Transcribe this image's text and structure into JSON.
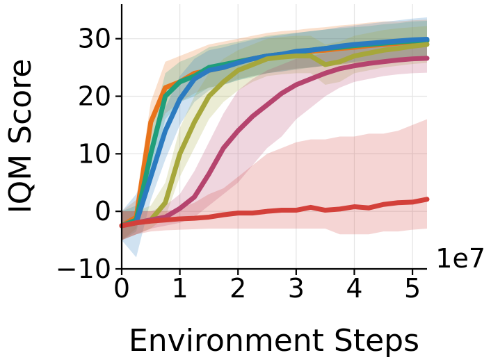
{
  "chart_data": {
    "type": "line",
    "title": "",
    "xlabel": "Environment Steps",
    "ylabel": "IQM Score",
    "x_scale_label": "1e7",
    "xlim": [
      0,
      5.25
    ],
    "ylim": [
      -10,
      36
    ],
    "x_ticks": [
      0,
      1,
      2,
      3,
      4,
      5
    ],
    "x_tick_labels": [
      "0",
      "1",
      "2",
      "3",
      "4",
      "5"
    ],
    "y_ticks": [
      -10,
      0,
      10,
      20,
      30
    ],
    "y_tick_labels": [
      "−10",
      "0",
      "10",
      "20",
      "30"
    ],
    "grid": true,
    "legend": "none",
    "x": [
      0,
      0.25,
      0.5,
      0.75,
      1,
      1.25,
      1.5,
      1.75,
      2,
      2.25,
      2.5,
      2.75,
      3,
      3.25,
      3.5,
      3.75,
      4,
      4.25,
      4.5,
      4.75,
      5,
      5.25
    ],
    "series": [
      {
        "color": "#e8731b",
        "values": [
          -2.5,
          -1,
          15.5,
          21.5,
          22.5,
          24,
          24.5,
          25,
          26,
          26.5,
          27,
          27.3,
          27.5,
          27.8,
          28,
          28.3,
          28.5,
          28.8,
          29,
          29.2,
          29.5,
          29.6
        ],
        "lower": [
          -5,
          -3,
          11,
          17,
          19,
          20.5,
          21.5,
          22,
          23,
          23.5,
          24,
          24.5,
          24.8,
          25,
          25.3,
          25.5,
          25.8,
          26,
          26.2,
          26.3,
          26.5,
          26.6
        ],
        "upper": [
          0,
          2,
          19,
          26,
          27,
          28,
          29,
          29.5,
          30,
          30.5,
          31,
          31.3,
          31.5,
          31.8,
          32,
          32.3,
          32.5,
          32.8,
          33,
          33,
          33.2,
          33.3
        ]
      },
      {
        "color": "#1f9e7a",
        "values": [
          -2.5,
          -1.5,
          10,
          20,
          22.5,
          23.5,
          25,
          25.5,
          26,
          26.5,
          27,
          27.3,
          27.6,
          28,
          28.3,
          28.5,
          28.8,
          29,
          29.2,
          29.4,
          29.6,
          29.7
        ],
        "lower": [
          -5,
          -3.5,
          6,
          16,
          19,
          20,
          21.5,
          22,
          22.8,
          23.3,
          24,
          24.3,
          24.6,
          25,
          25.3,
          25.5,
          25.8,
          26,
          26.2,
          26.4,
          26.6,
          26.7
        ],
        "upper": [
          0,
          1,
          14,
          24,
          26,
          27,
          28.5,
          29,
          29.5,
          30,
          30.5,
          30.8,
          31,
          31.3,
          31.6,
          31.8,
          32,
          32.2,
          32.5,
          32.7,
          33,
          33.1
        ]
      },
      {
        "color": "#2b7bc0",
        "values": [
          -2.5,
          -2,
          6,
          14,
          19.5,
          23,
          24.5,
          25,
          25.8,
          26.5,
          27,
          27.3,
          27.8,
          28,
          28.3,
          28.7,
          29,
          29.2,
          29.4,
          29.6,
          29.8,
          29.9
        ],
        "lower": [
          -5,
          -8,
          2,
          9,
          15,
          19,
          21,
          22,
          22.8,
          23.5,
          24,
          24.3,
          24.8,
          25,
          25.3,
          25.7,
          26,
          26.2,
          26.4,
          26.5,
          26.7,
          26.8
        ],
        "upper": [
          0,
          3,
          10,
          18,
          23.5,
          26.5,
          28,
          28.5,
          29.2,
          29.8,
          30.3,
          30.6,
          31,
          31.3,
          31.6,
          32,
          32.3,
          32.6,
          32.9,
          33.2,
          33.5,
          33.7
        ]
      },
      {
        "color": "#a6a73b",
        "values": [
          -2.5,
          -2,
          -1.5,
          1.5,
          10,
          15.5,
          20,
          22.5,
          24.5,
          25.5,
          26.5,
          26.8,
          27,
          27,
          25.5,
          26,
          27,
          27.5,
          28,
          28.3,
          28.7,
          29
        ],
        "lower": [
          -5,
          -4,
          -3,
          -1,
          6,
          11,
          16,
          19,
          21,
          22.5,
          23.5,
          23.8,
          24,
          24,
          22,
          22.5,
          24,
          24.5,
          25,
          25.3,
          25.6,
          25.8
        ],
        "upper": [
          0,
          0,
          1,
          5,
          14.5,
          20,
          24,
          26.5,
          28,
          29,
          30,
          30.3,
          30.5,
          30.5,
          29,
          29.5,
          30.5,
          31,
          31.5,
          31.8,
          32,
          32.2
        ]
      },
      {
        "color": "#b5446e",
        "values": [
          -2.5,
          -2,
          -1.5,
          -1,
          0.5,
          2.5,
          6.5,
          11,
          14,
          16.5,
          18.5,
          20.5,
          22,
          23,
          24,
          24.8,
          25.3,
          25.7,
          26,
          26.3,
          26.5,
          26.6
        ],
        "lower": [
          -5,
          -4,
          -3,
          -2.5,
          -2,
          -1,
          1,
          3,
          5,
          8,
          11,
          13,
          16,
          18,
          20,
          21.5,
          22.5,
          23,
          23.5,
          23.8,
          24,
          24.1
        ],
        "upper": [
          0,
          0,
          0,
          1,
          3,
          7,
          12,
          17,
          21,
          23,
          24.5,
          25.5,
          26.5,
          27,
          27.5,
          28,
          28.3,
          28.6,
          29,
          29.3,
          29.5,
          29.6
        ]
      },
      {
        "color": "#d3403a",
        "values": [
          -2.5,
          -2,
          -1.7,
          -1.5,
          -1.3,
          -1.2,
          -1,
          -0.6,
          -0.3,
          -0.3,
          0,
          0.2,
          0.2,
          0.7,
          0.2,
          0.4,
          0.8,
          0.6,
          1.2,
          1.5,
          1.6,
          2.1
        ],
        "lower": [
          -5,
          -4,
          -3.5,
          -3.3,
          -3.2,
          -3.1,
          -3,
          -3,
          -3,
          -3,
          -3,
          -3,
          -3,
          -3,
          -3,
          -4,
          -4,
          -4,
          -3.5,
          -3.5,
          -3.2,
          -3
        ],
        "upper": [
          0,
          0,
          0,
          0,
          0.5,
          1.5,
          3,
          4,
          6,
          8,
          10,
          11,
          12,
          12.5,
          12.5,
          13,
          13,
          13.5,
          13.5,
          14,
          15,
          16
        ]
      }
    ]
  }
}
